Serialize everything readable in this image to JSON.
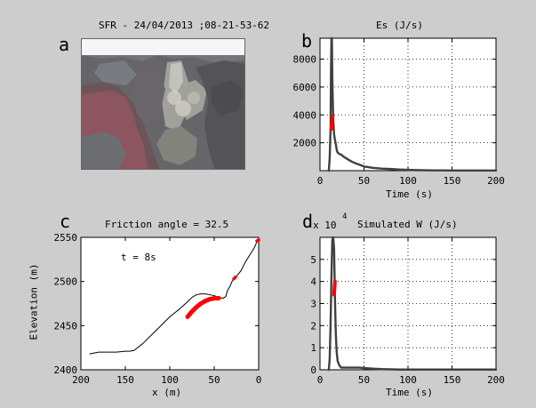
{
  "figure": {
    "background": "#cdcdcd",
    "panel_labels": [
      "a",
      "b",
      "c",
      "d"
    ],
    "photo_title": "SFR - 24/04/2013 ;08-21-53-62",
    "photo_description_icon": "photo-image"
  },
  "colors": {
    "axis": "#000000",
    "series": "#404040",
    "highlight": "#ff0000",
    "grid": "#000000",
    "panel": "#ffffff"
  },
  "chart_data": [
    {
      "id": "b",
      "type": "line",
      "title": "Es (J/s)",
      "xlabel": "Time (s)",
      "ylabel": "",
      "xlim": [
        0,
        200
      ],
      "ylim": [
        0,
        9500
      ],
      "xticks": [
        0,
        50,
        100,
        150,
        200
      ],
      "yticks": [
        2000,
        4000,
        6000,
        8000
      ],
      "grid": true,
      "series": [
        {
          "x": [
            10,
            11,
            12,
            12.5,
            13,
            13.5,
            14,
            15,
            16,
            17,
            18,
            19,
            20,
            22,
            24,
            26,
            28,
            30,
            33,
            36,
            40,
            45,
            50,
            55,
            60,
            70,
            80,
            90,
            100,
            110,
            120,
            130,
            140,
            150,
            160,
            170,
            180,
            190,
            200
          ],
          "y": [
            0,
            900,
            3000,
            7000,
            9500,
            9500,
            6500,
            3700,
            2600,
            2200,
            1900,
            1500,
            1300,
            1200,
            1150,
            1050,
            950,
            880,
            760,
            650,
            540,
            420,
            300,
            250,
            200,
            150,
            120,
            80,
            60,
            40,
            30,
            20,
            20,
            10,
            10,
            10,
            10,
            10,
            10
          ]
        }
      ],
      "highlight": {
        "x": [
          13,
          14
        ],
        "y": [
          3000,
          3900
        ]
      }
    },
    {
      "id": "c",
      "type": "line",
      "title": "Friction angle = 32.5",
      "xlabel": "x (m)",
      "ylabel": "Elevation (m)",
      "xlim": [
        200,
        0
      ],
      "ylim": [
        2400,
        2550
      ],
      "xticks": [
        200,
        150,
        100,
        50,
        0
      ],
      "yticks": [
        2400,
        2450,
        2500,
        2550
      ],
      "grid": false,
      "annotation": "t = 8s",
      "series": [
        {
          "x": [
            190,
            180,
            170,
            160,
            150,
            145,
            140,
            130,
            120,
            110,
            100,
            90,
            80,
            75,
            70,
            65,
            60,
            55,
            50,
            45,
            40,
            37,
            35,
            32,
            30,
            28,
            25,
            20,
            15,
            10,
            5,
            2,
            0
          ],
          "y": [
            2418,
            2420,
            2420,
            2420,
            2421,
            2421,
            2422,
            2430,
            2440,
            2450,
            2460,
            2468,
            2477,
            2482,
            2485,
            2486,
            2486,
            2485,
            2484,
            2482,
            2481,
            2483,
            2490,
            2495,
            2500,
            2503,
            2506,
            2512,
            2522,
            2530,
            2538,
            2545,
            2547
          ]
        }
      ],
      "highlights": [
        {
          "x": [
            80,
            75,
            70,
            65,
            60,
            55,
            50,
            45
          ],
          "y": [
            2460,
            2466,
            2471,
            2475,
            2478,
            2480,
            2481,
            2481
          ]
        },
        {
          "x": [
            28,
            26
          ],
          "y": [
            2503,
            2505
          ]
        },
        {
          "x": [
            2,
            0
          ],
          "y": [
            2546,
            2547
          ]
        }
      ]
    },
    {
      "id": "d",
      "type": "line",
      "title": "Simulated W (J/s)",
      "xlabel": "Time (s)",
      "ylabel": "",
      "exponent_label": "x 10",
      "exponent_value": "4",
      "xlim": [
        0,
        200
      ],
      "ylim": [
        0,
        6
      ],
      "xticks": [
        0,
        50,
        100,
        150,
        200
      ],
      "yticks": [
        0,
        1,
        2,
        3,
        4,
        5
      ],
      "grid": true,
      "series": [
        {
          "x": [
            10,
            11,
            12,
            13,
            14,
            15,
            16,
            17,
            18,
            19,
            20,
            22,
            24,
            26,
            28,
            30,
            35,
            40,
            45,
            50,
            60,
            70,
            80,
            90,
            100,
            120,
            140,
            160,
            180,
            200
          ],
          "y": [
            0,
            0.5,
            2.0,
            4.2,
            5.9,
            6.0,
            5.5,
            3.2,
            1.6,
            0.8,
            0.4,
            0.2,
            0.1,
            0.1,
            0.1,
            0.1,
            0.1,
            0.1,
            0.1,
            0.08,
            0.05,
            0.03,
            0.02,
            0.01,
            0.01,
            0.01,
            0.01,
            0.01,
            0.01,
            0.01
          ]
        }
      ],
      "highlight": {
        "x": [
          16,
          17
        ],
        "y": [
          3.4,
          4.0
        ]
      }
    }
  ]
}
